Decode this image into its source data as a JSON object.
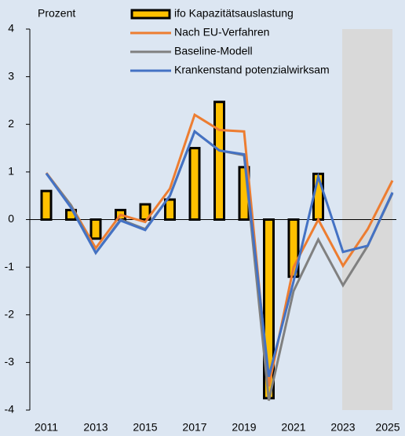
{
  "chart_data": {
    "type": "bar_line",
    "y_label": "Prozent",
    "categories": [
      "2011",
      null,
      "2013",
      null,
      "2015",
      null,
      "2017",
      null,
      "2019",
      null,
      "2021",
      null,
      "2023",
      null,
      "2025"
    ],
    "series": [
      {
        "name": "ifo Kapazitätsauslastung",
        "type": "bar",
        "color": "#ffc000",
        "values": [
          0.6,
          0.2,
          -0.4,
          0.2,
          0.32,
          0.42,
          1.5,
          2.47,
          1.1,
          -3.75,
          -1.2,
          0.96,
          null,
          null,
          null
        ]
      },
      {
        "name": "Nach EU-Verfahren",
        "type": "line",
        "color": "#ed7d31",
        "values": [
          0.98,
          0.3,
          -0.6,
          0.1,
          -0.05,
          0.65,
          2.2,
          1.88,
          1.85,
          -3.5,
          -1.0,
          0.0,
          -0.97,
          -0.2,
          0.82
        ]
      },
      {
        "name": "Baseline-Modell",
        "type": "line",
        "color": "#808080",
        "values": [
          0.97,
          0.3,
          -0.7,
          0.0,
          -0.2,
          0.5,
          1.85,
          1.45,
          1.35,
          -3.8,
          -1.5,
          -0.42,
          -1.38,
          -0.55,
          0.55
        ]
      },
      {
        "name": "Krankenstand potenzialwirksam",
        "type": "line",
        "color": "#4472c4",
        "values": [
          0.97,
          0.25,
          -0.7,
          -0.02,
          -0.22,
          0.5,
          1.85,
          1.45,
          1.37,
          -3.3,
          -1.3,
          0.9,
          -0.68,
          -0.55,
          0.57
        ]
      }
    ],
    "ylim": [
      -4,
      4
    ],
    "yticks": [
      -4,
      -3,
      -2,
      -1,
      0,
      1,
      2,
      3,
      4
    ]
  }
}
